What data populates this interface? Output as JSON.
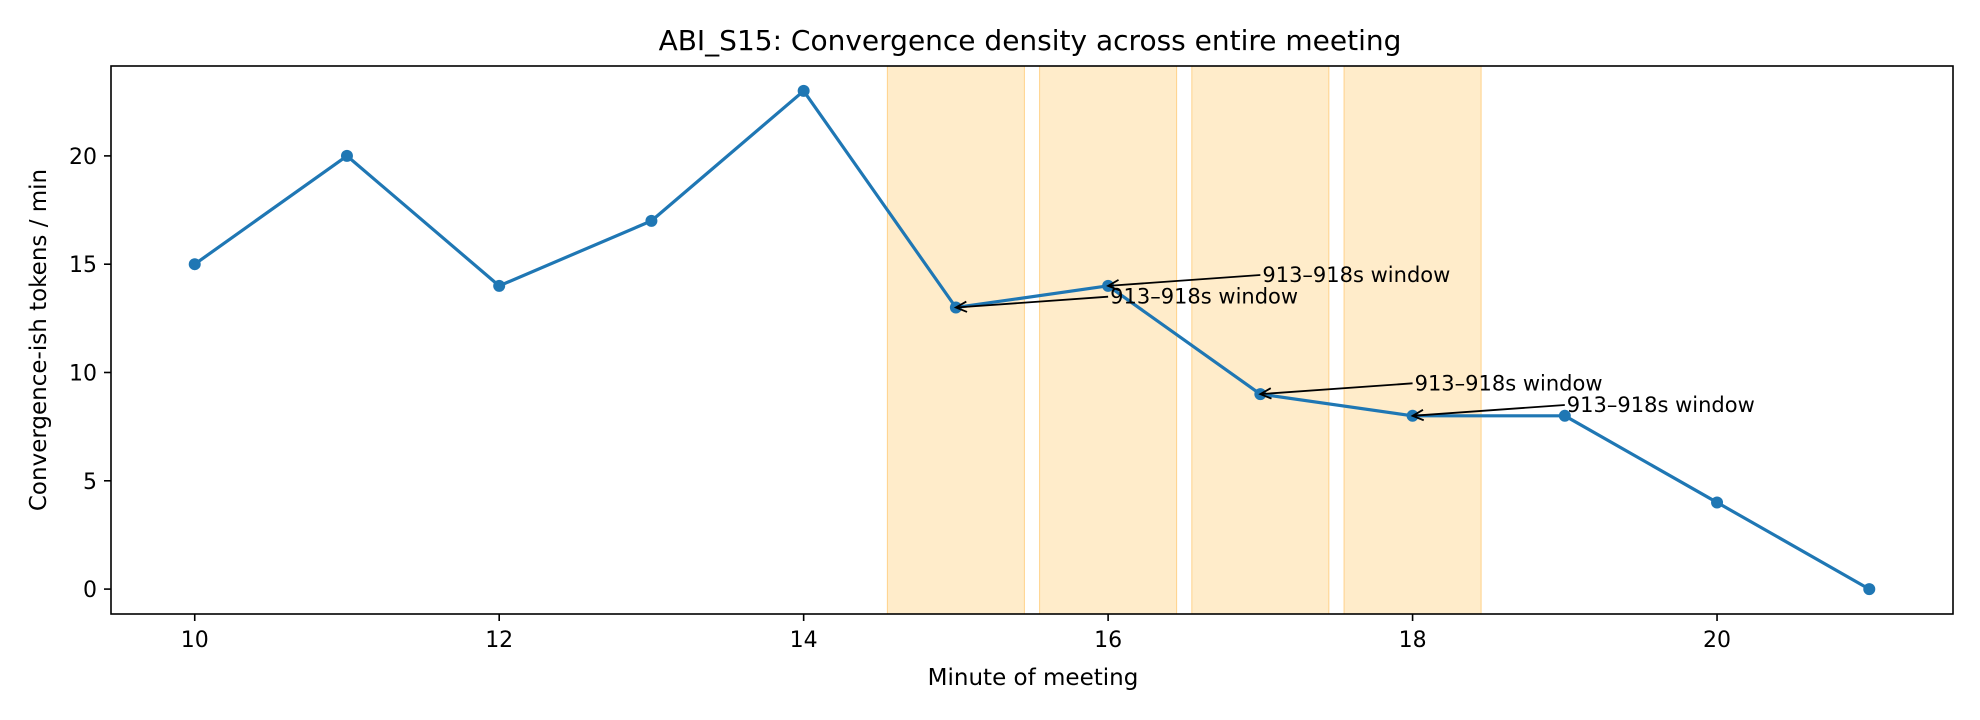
{
  "chart_data": {
    "type": "line",
    "title": "ABI_S15: Convergence density across entire meeting",
    "xlabel": "Minute of meeting",
    "ylabel": "Convergence-ish tokens / min",
    "xlim": [
      9.45,
      21.55
    ],
    "ylim": [
      -1.15,
      24.15
    ],
    "xticks": [
      10,
      12,
      14,
      16,
      18,
      20
    ],
    "yticks": [
      0,
      5,
      10,
      15,
      20
    ],
    "grid": false,
    "series": [
      {
        "color": "#1f77b4",
        "x": [
          10,
          11,
          12,
          13,
          14,
          15,
          16,
          17,
          18,
          19,
          20,
          21
        ],
        "y": [
          15,
          20,
          14,
          17,
          23,
          13,
          14,
          9,
          8,
          8,
          4,
          0
        ]
      }
    ],
    "highlight_spans": [
      {
        "start": 14.55,
        "end": 15.45,
        "color": "#ffe0a6"
      },
      {
        "start": 15.55,
        "end": 16.45,
        "color": "#ffe0a6"
      },
      {
        "start": 16.55,
        "end": 17.45,
        "color": "#ffe0a6"
      },
      {
        "start": 17.55,
        "end": 18.45,
        "color": "#ffe0a6"
      }
    ],
    "annotations": [
      {
        "text": "913–918s window",
        "point": [
          15,
          13
        ],
        "text_at": [
          16,
          13.5
        ]
      },
      {
        "text": "913–918s window",
        "point": [
          16,
          14
        ],
        "text_at": [
          17,
          14.5
        ]
      },
      {
        "text": "913–918s window",
        "point": [
          17,
          9
        ],
        "text_at": [
          18,
          9.5
        ]
      },
      {
        "text": "913–918s window",
        "point": [
          18,
          8
        ],
        "text_at": [
          19,
          8.5
        ]
      }
    ]
  }
}
